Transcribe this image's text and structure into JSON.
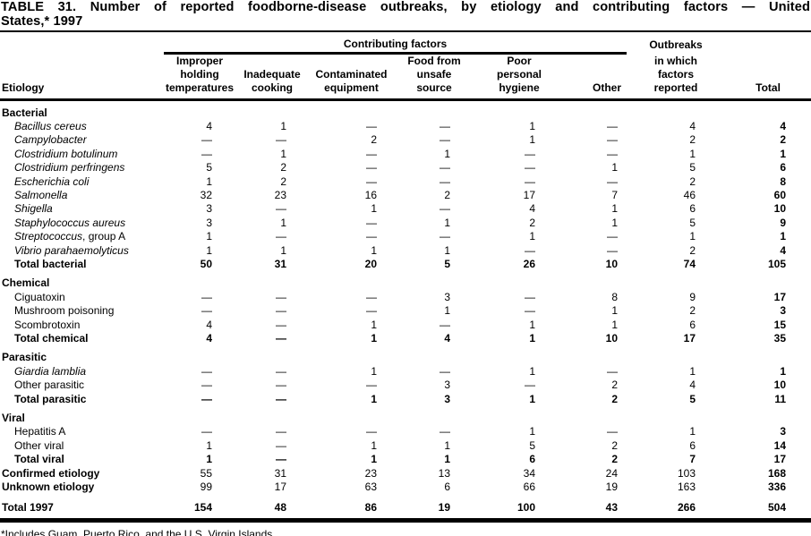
{
  "title": {
    "line1": "TABLE 31. Number of reported foodborne-disease outbreaks, by etiology and contributing factors — United",
    "line2": "States,* 1997"
  },
  "header": {
    "group_label": "Contributing factors",
    "outbreaks_line1": "Outbreaks",
    "etiology": "Etiology"
  },
  "table": {
    "columns": [
      {
        "name": "improper-holding-temperatures",
        "lines": [
          "Improper",
          "holding",
          "temperatures"
        ]
      },
      {
        "name": "inadequate-cooking",
        "lines": [
          "Inadequate",
          "cooking"
        ]
      },
      {
        "name": "contaminated-equipment",
        "lines": [
          "Contaminated",
          "equipment"
        ]
      },
      {
        "name": "food-from-unsafe-source",
        "lines": [
          "Food from",
          "unsafe",
          "source"
        ]
      },
      {
        "name": "poor-personal-hygiene",
        "lines": [
          "Poor",
          "personal",
          "hygiene"
        ]
      },
      {
        "name": "other",
        "lines": [
          "Other"
        ]
      },
      {
        "name": "outbreaks-factors-reported",
        "lines": [
          "in which",
          "factors",
          "reported"
        ]
      },
      {
        "name": "total",
        "lines": [
          "Total"
        ]
      }
    ],
    "rows": [
      {
        "type": "section",
        "label": "Bacterial"
      },
      {
        "type": "item",
        "italic": true,
        "label": "Bacillus cereus",
        "values": [
          "4",
          "1",
          "—",
          "—",
          "1",
          "—",
          "4",
          "4"
        ]
      },
      {
        "type": "item",
        "italic": true,
        "label": "Campylobacter",
        "values": [
          "—",
          "—",
          "2",
          "—",
          "1",
          "—",
          "2",
          "2"
        ]
      },
      {
        "type": "item",
        "italic": true,
        "label": "Clostridium botulinum",
        "values": [
          "—",
          "1",
          "—",
          "1",
          "—",
          "—",
          "1",
          "1"
        ]
      },
      {
        "type": "item",
        "italic": true,
        "label": "Clostridium perfringens",
        "values": [
          "5",
          "2",
          "—",
          "—",
          "—",
          "1",
          "5",
          "6"
        ]
      },
      {
        "type": "item",
        "italic": true,
        "label": "Escherichia coli",
        "values": [
          "1",
          "2",
          "—",
          "—",
          "—",
          "—",
          "2",
          "8"
        ]
      },
      {
        "type": "item",
        "italic": true,
        "label": "Salmonella",
        "values": [
          "32",
          "23",
          "16",
          "2",
          "17",
          "7",
          "46",
          "60"
        ]
      },
      {
        "type": "item",
        "italic": true,
        "label": "Shigella",
        "values": [
          "3",
          "—",
          "1",
          "—",
          "4",
          "1",
          "6",
          "10"
        ]
      },
      {
        "type": "item",
        "italic": true,
        "label": "Staphylococcus aureus",
        "values": [
          "3",
          "1",
          "—",
          "1",
          "2",
          "1",
          "5",
          "9"
        ]
      },
      {
        "type": "item",
        "italic": true,
        "label": "Streptococcus",
        "suffix": ", group A",
        "values": [
          "1",
          "—",
          "—",
          "—",
          "1",
          "—",
          "1",
          "1"
        ]
      },
      {
        "type": "item",
        "italic": true,
        "label": "Vibrio parahaemolyticus",
        "values": [
          "1",
          "1",
          "1",
          "1",
          "—",
          "—",
          "2",
          "4"
        ]
      },
      {
        "type": "total",
        "label": "Total bacterial",
        "values": [
          "50",
          "31",
          "20",
          "5",
          "26",
          "10",
          "74",
          "105"
        ]
      },
      {
        "type": "section",
        "label": "Chemical"
      },
      {
        "type": "item",
        "label": "Ciguatoxin",
        "values": [
          "—",
          "—",
          "—",
          "3",
          "—",
          "8",
          "9",
          "17"
        ]
      },
      {
        "type": "item",
        "label": "Mushroom poisoning",
        "values": [
          "—",
          "—",
          "—",
          "1",
          "—",
          "1",
          "2",
          "3"
        ]
      },
      {
        "type": "item",
        "label": "Scombrotoxin",
        "values": [
          "4",
          "—",
          "1",
          "—",
          "1",
          "1",
          "6",
          "15"
        ]
      },
      {
        "type": "total",
        "label": "Total chemical",
        "values": [
          "4",
          "—",
          "1",
          "4",
          "1",
          "10",
          "17",
          "35"
        ]
      },
      {
        "type": "section",
        "label": "Parasitic"
      },
      {
        "type": "item",
        "italic": true,
        "label": "Giardia lamblia",
        "values": [
          "—",
          "—",
          "1",
          "—",
          "1",
          "—",
          "1",
          "1"
        ]
      },
      {
        "type": "item",
        "label": "Other parasitic",
        "values": [
          "—",
          "—",
          "—",
          "3",
          "—",
          "2",
          "4",
          "10"
        ]
      },
      {
        "type": "total",
        "label": "Total parasitic",
        "values": [
          "—",
          "—",
          "1",
          "3",
          "1",
          "2",
          "5",
          "11"
        ]
      },
      {
        "type": "section",
        "label": "Viral"
      },
      {
        "type": "item",
        "label": "Hepatitis A",
        "values": [
          "—",
          "—",
          "—",
          "—",
          "1",
          "—",
          "1",
          "3"
        ]
      },
      {
        "type": "item",
        "label": "Other viral",
        "values": [
          "1",
          "—",
          "1",
          "1",
          "5",
          "2",
          "6",
          "14"
        ]
      },
      {
        "type": "total",
        "label": "Total viral",
        "values": [
          "1",
          "—",
          "1",
          "1",
          "6",
          "2",
          "7",
          "17"
        ]
      },
      {
        "type": "summary",
        "label": "Confirmed etiology",
        "values": [
          "55",
          "31",
          "23",
          "13",
          "34",
          "24",
          "103",
          "168"
        ]
      },
      {
        "type": "summary",
        "label": "Unknown etiology",
        "values": [
          "99",
          "17",
          "63",
          "6",
          "66",
          "19",
          "163",
          "336"
        ]
      },
      {
        "type": "grand",
        "label": "Total 1997",
        "values": [
          "154",
          "48",
          "86",
          "19",
          "100",
          "43",
          "266",
          "504"
        ]
      }
    ]
  },
  "footnote": "*Includes Guam, Puerto Rico, and the U.S. Virgin Islands."
}
